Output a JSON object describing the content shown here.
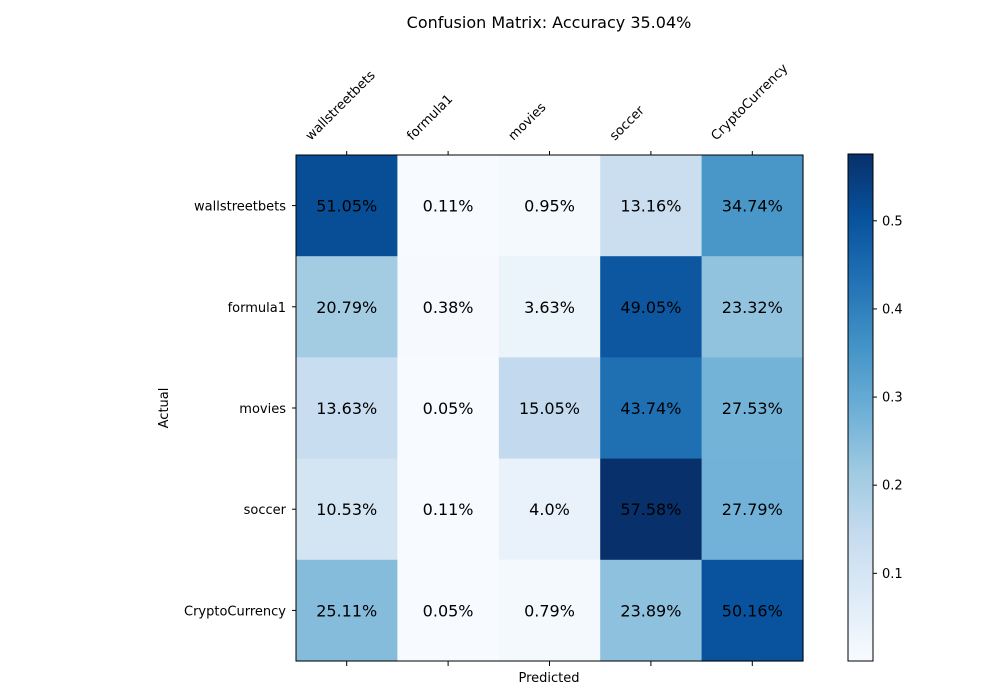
{
  "chart_data": {
    "type": "heatmap",
    "title": "Confusion Matrix: Accuracy 35.04%",
    "xlabel": "Predicted",
    "ylabel": "Actual",
    "x_categories": [
      "wallstreetbets",
      "formula1",
      "movies",
      "soccer",
      "CryptoCurrency"
    ],
    "y_categories": [
      "wallstreetbets",
      "formula1",
      "movies",
      "soccer",
      "CryptoCurrency"
    ],
    "values": [
      [
        0.5105,
        0.0011,
        0.0095,
        0.1316,
        0.3474
      ],
      [
        0.2079,
        0.0038,
        0.0363,
        0.4905,
        0.2332
      ],
      [
        0.1363,
        0.0005,
        0.1505,
        0.4374,
        0.2753
      ],
      [
        0.1053,
        0.0011,
        0.04,
        0.5758,
        0.2779
      ],
      [
        0.2511,
        0.0005,
        0.0079,
        0.2389,
        0.5016
      ]
    ],
    "cell_labels": [
      [
        "51.05%",
        "0.11%",
        "0.95%",
        "13.16%",
        "34.74%"
      ],
      [
        "20.79%",
        "0.38%",
        "3.63%",
        "49.05%",
        "23.32%"
      ],
      [
        "13.63%",
        "0.05%",
        "15.05%",
        "43.74%",
        "27.53%"
      ],
      [
        "10.53%",
        "0.11%",
        "4.0%",
        "57.58%",
        "27.79%"
      ],
      [
        "25.11%",
        "0.05%",
        "0.79%",
        "23.89%",
        "50.16%"
      ]
    ],
    "colormap": "Blues",
    "colorbar": {
      "range": [
        0.0005,
        0.5758
      ],
      "ticks": [
        0.1,
        0.2,
        0.3,
        0.4,
        0.5
      ],
      "tick_labels": [
        "0.1",
        "0.2",
        "0.3",
        "0.4",
        "0.5"
      ]
    },
    "x_tick_position": "top",
    "grid": false
  }
}
